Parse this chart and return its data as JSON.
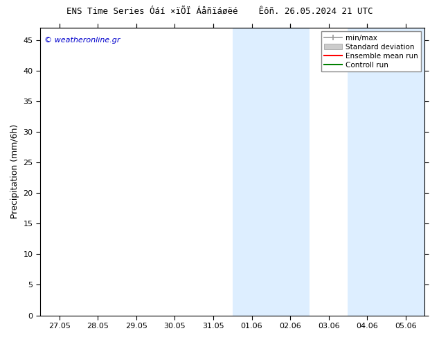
{
  "title": "ENS Time Series Óáí ×ïÕÏ Áåñïáøëé    Êôñ. 26.05.2024 21 UTC",
  "ylabel": "Precipitation (mm/6h)",
  "watermark": "© weatheronline.gr",
  "ylim": [
    0,
    47
  ],
  "yticks": [
    0,
    5,
    10,
    15,
    20,
    25,
    30,
    35,
    40,
    45
  ],
  "xtick_labels": [
    "27.05",
    "28.05",
    "29.05",
    "30.05",
    "31.05",
    "01.06",
    "02.06",
    "03.06",
    "04.06",
    "05.06"
  ],
  "xtick_positions": [
    0,
    1,
    2,
    3,
    4,
    5,
    6,
    7,
    8,
    9
  ],
  "xlim": [
    -0.5,
    9.5
  ],
  "shaded_bands": [
    {
      "x_start": 4.5,
      "x_end": 5.5,
      "color": "#ddeeff"
    },
    {
      "x_start": 5.5,
      "x_end": 6.5,
      "color": "#ddeeff"
    },
    {
      "x_start": 7.5,
      "x_end": 8.5,
      "color": "#ddeeff"
    },
    {
      "x_start": 8.5,
      "x_end": 9.5,
      "color": "#ddeeff"
    }
  ],
  "legend_items_labels": [
    "min/max",
    "Standard deviation",
    "Ensemble mean run",
    "Controll run"
  ],
  "legend_colors": [
    "#999999",
    "#cccccc",
    "#ff0000",
    "#008000"
  ],
  "background_color": "#ffffff",
  "plot_bg_color": "#ffffff",
  "border_color": "#000000",
  "font_size": 8,
  "title_font_size": 9,
  "watermark_color": "#0000cc",
  "watermark_fontsize": 8
}
